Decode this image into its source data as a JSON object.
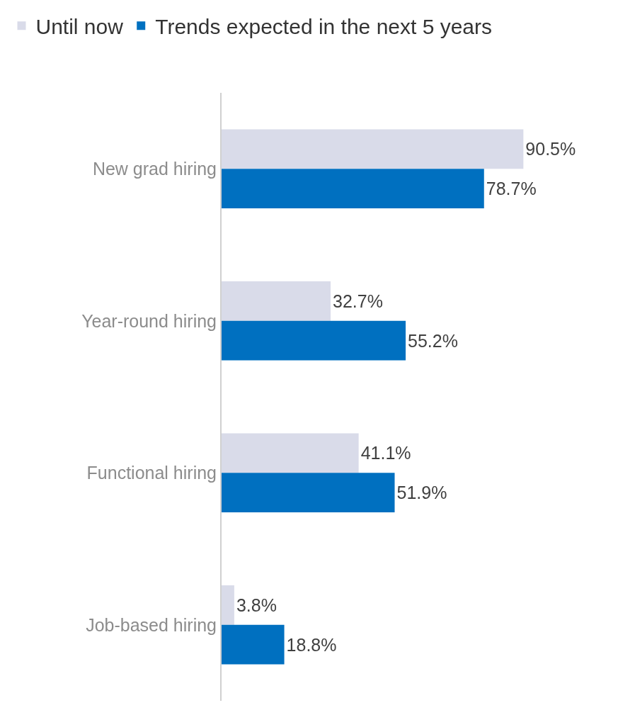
{
  "chart_data": {
    "type": "bar",
    "orientation": "horizontal",
    "categories": [
      "New grad hiring",
      "Year-round hiring",
      "Functional hiring",
      "Job-based hiring"
    ],
    "series": [
      {
        "name": "Until now",
        "color": "#d9dbe9",
        "values": [
          90.5,
          32.7,
          41.1,
          3.8
        ],
        "value_labels": [
          "90.5%",
          "32.7%",
          "41.1%",
          "3.8%"
        ]
      },
      {
        "name": "Trends expected in the next 5 years",
        "color": "#0070c0",
        "values": [
          78.7,
          55.2,
          51.9,
          18.8
        ],
        "value_labels": [
          "78.7%",
          "55.2%",
          "51.9%",
          "18.8%"
        ]
      }
    ],
    "legend": "top left",
    "tick_labels": "y"
  }
}
